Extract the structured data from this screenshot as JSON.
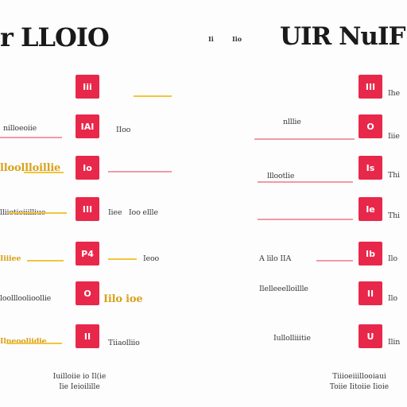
{
  "titles": {
    "left": "r LLOIO",
    "right": "UIR NuIF",
    "mark_left": "Ii",
    "mark_right": "Iio"
  },
  "icons": [
    {
      "text": "Iii",
      "icon": "document-icon"
    },
    {
      "text": "IAI",
      "icon": "chart-icon"
    },
    {
      "text": "Io",
      "icon": "target-icon"
    },
    {
      "text": "III",
      "icon": "screen-icon"
    },
    {
      "text": "P4",
      "icon": "p4-icon"
    },
    {
      "text": "O",
      "icon": "circle-icon"
    },
    {
      "text": "II",
      "icon": "bars-icon"
    },
    {
      "text": "III",
      "icon": "frame-icon"
    },
    {
      "text": "O",
      "icon": "ring-icon"
    },
    {
      "text": "Is",
      "icon": "is-icon"
    },
    {
      "text": "Ie",
      "icon": "cluster-icon"
    },
    {
      "text": "Ib",
      "icon": "ib-icon"
    },
    {
      "text": "II",
      "icon": "grid-icon"
    },
    {
      "text": "U",
      "icon": "u-icon"
    }
  ],
  "labels": {
    "l1": "nilloeoiie",
    "l2": "IIoo",
    "l3": "lloollloillie",
    "l4": "lliiotioiiilliue",
    "l5": "Iiee",
    "l6": "Ioo ellle",
    "l7": "Iiiiee",
    "l8": "Ieoo",
    "l9": "loollloolioollie",
    "l10": "Iilo ioe",
    "l11": "Ilneooliidie",
    "l12": "Tiiaolliio",
    "r1": "Ihe",
    "r2": "nlllie",
    "r3": "Iiie",
    "r4": "lllootlie",
    "r5": "Thi",
    "r6": "Thi",
    "r7": "A lilo IIA",
    "r8": "Ilo",
    "r9": "Ilelleeelloillle",
    "r10": "Ilo",
    "r11": "Iullolliiitie",
    "r12": "Ilin"
  },
  "footer": {
    "left_1": "Iuilloiie io Il(ie",
    "left_2": "Iie Ieioilille",
    "right_1": "Tiiioeiiillooiaui",
    "right_2": "Toiie Iitoiie Iioie"
  }
}
